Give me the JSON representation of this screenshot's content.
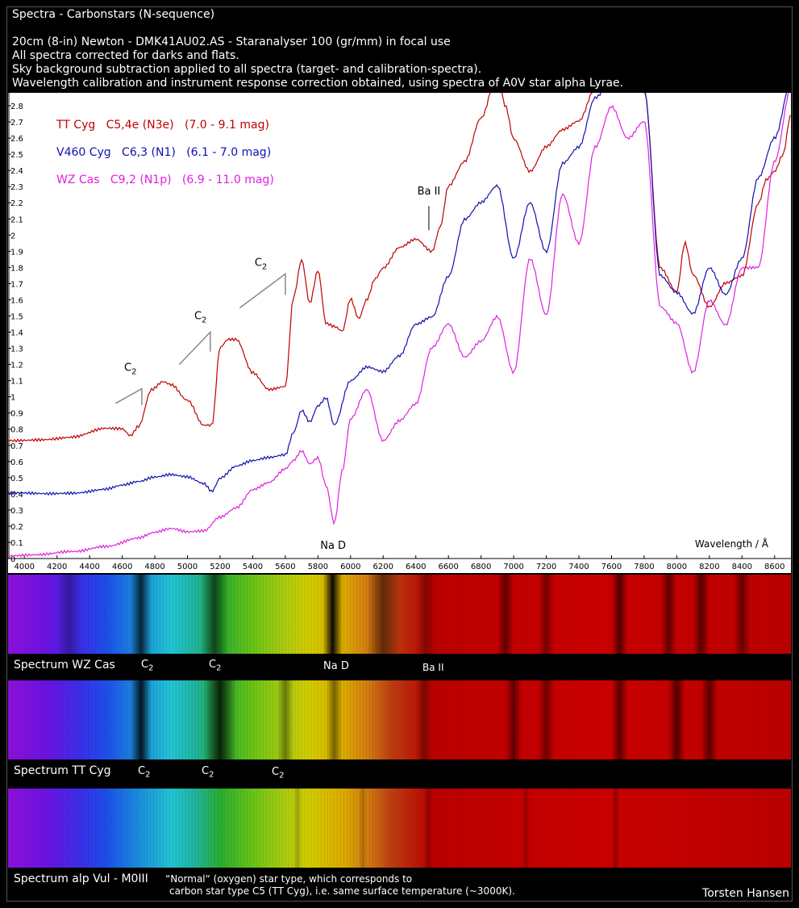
{
  "header": {
    "title": "Spectra - Carbonstars (N-sequence)",
    "lines": [
      "20cm (8-in) Newton   -  DMK41AU02.AS  -  Staranalyser 100 (gr/mm) in focal use",
      "All spectra corrected for darks and flats.",
      "Sky background subtraction applied to all spectra (target- and calibration-spectra).",
      "Wavelength calibration and instrument response correction obtained, using spectra of A0V star alpha Lyrae."
    ]
  },
  "chart_data": {
    "type": "line",
    "xlabel": "Wavelength / Å",
    "xlim": [
      3900,
      8700
    ],
    "ylim": [
      0,
      2.88
    ],
    "xticks": [
      4000,
      4200,
      4400,
      4600,
      4800,
      5000,
      5200,
      5400,
      5600,
      5800,
      6000,
      6200,
      6400,
      6600,
      6800,
      7000,
      7200,
      7400,
      7600,
      7800,
      8000,
      8200,
      8400,
      8600
    ],
    "yticks": [
      0,
      0.1,
      0.2,
      0.3,
      0.4,
      0.5,
      0.6,
      0.7,
      0.8,
      0.9,
      1,
      1.1,
      1.2,
      1.3,
      1.4,
      1.5,
      1.6,
      1.7,
      1.8,
      1.9,
      2,
      2.1,
      2.2,
      2.3,
      2.4,
      2.5,
      2.6,
      2.7,
      2.8
    ],
    "legend_placement": "top-left",
    "series": [
      {
        "name": "TT Cyg   C5,4e (N3e)   (7.0 - 9.1 mag)",
        "color": "#c00000",
        "x": [
          3900,
          4100,
          4300,
          4500,
          4600,
          4650,
          4700,
          4780,
          4850,
          4900,
          5000,
          5100,
          5150,
          5200,
          5250,
          5300,
          5400,
          5500,
          5600,
          5650,
          5700,
          5750,
          5800,
          5850,
          5900,
          5950,
          6000,
          6050,
          6100,
          6150,
          6200,
          6300,
          6400,
          6500,
          6550,
          6600,
          6700,
          6800,
          6900,
          6950,
          7000,
          7100,
          7200,
          7300,
          7400,
          7500,
          7600,
          7700,
          7800,
          7900,
          8000,
          8050,
          8100,
          8200,
          8300,
          8400,
          8500,
          8550,
          8600,
          8650,
          8700
        ],
        "y": [
          0.73,
          0.74,
          0.75,
          0.8,
          0.8,
          0.76,
          0.82,
          1.05,
          1.1,
          1.08,
          0.98,
          0.82,
          0.82,
          1.3,
          1.35,
          1.35,
          1.15,
          1.05,
          1.07,
          1.62,
          1.85,
          1.58,
          1.78,
          1.45,
          1.43,
          1.4,
          1.6,
          1.48,
          1.6,
          1.73,
          1.8,
          1.93,
          1.98,
          1.9,
          2.05,
          2.3,
          2.45,
          2.72,
          3.0,
          2.8,
          2.6,
          2.4,
          2.55,
          2.65,
          2.7,
          2.9,
          2.95,
          3.0,
          2.9,
          1.8,
          1.65,
          1.95,
          1.75,
          1.55,
          1.7,
          1.75,
          2.2,
          2.35,
          2.4,
          2.5,
          2.75
        ]
      },
      {
        "name": "V460 Cyg   C6,3 (N1)   (6.1 - 7.0 mag)",
        "color": "#1010b0",
        "x": [
          3900,
          4100,
          4300,
          4500,
          4600,
          4700,
          4800,
          4900,
          5000,
          5100,
          5150,
          5200,
          5300,
          5400,
          5500,
          5600,
          5650,
          5700,
          5750,
          5800,
          5850,
          5900,
          6000,
          6100,
          6200,
          6300,
          6400,
          6500,
          6600,
          6700,
          6800,
          6900,
          7000,
          7100,
          7200,
          7300,
          7400,
          7500,
          7600,
          7700,
          7800,
          7900,
          8000,
          8100,
          8200,
          8300,
          8400,
          8500,
          8600,
          8700
        ],
        "y": [
          0.4,
          0.4,
          0.41,
          0.43,
          0.45,
          0.47,
          0.5,
          0.52,
          0.51,
          0.47,
          0.42,
          0.5,
          0.57,
          0.6,
          0.62,
          0.64,
          0.78,
          0.92,
          0.85,
          0.95,
          1.0,
          0.83,
          1.1,
          1.18,
          1.15,
          1.25,
          1.45,
          1.5,
          1.75,
          2.1,
          2.2,
          2.3,
          1.85,
          2.2,
          1.9,
          2.45,
          2.55,
          2.85,
          2.95,
          3.0,
          2.9,
          1.75,
          1.65,
          1.52,
          1.8,
          1.63,
          1.85,
          2.35,
          2.6,
          2.95
        ]
      },
      {
        "name": "WZ Cas   C9,2 (N1p)   (6.9 - 11.0 mag)",
        "color": "#e020e0",
        "x": [
          3900,
          4100,
          4300,
          4500,
          4700,
          4800,
          4900,
          5000,
          5100,
          5200,
          5300,
          5400,
          5500,
          5600,
          5650,
          5700,
          5750,
          5800,
          5850,
          5900,
          5950,
          6000,
          6100,
          6200,
          6300,
          6400,
          6500,
          6600,
          6700,
          6800,
          6900,
          7000,
          7100,
          7200,
          7300,
          7400,
          7500,
          7600,
          7700,
          7800,
          7900,
          8000,
          8100,
          8200,
          8300,
          8400,
          8500,
          8600,
          8700
        ],
        "y": [
          0.02,
          0.02,
          0.04,
          0.08,
          0.13,
          0.16,
          0.18,
          0.16,
          0.17,
          0.26,
          0.32,
          0.43,
          0.47,
          0.55,
          0.6,
          0.66,
          0.58,
          0.62,
          0.45,
          0.22,
          0.55,
          0.87,
          1.05,
          0.73,
          0.85,
          0.95,
          1.3,
          1.45,
          1.25,
          1.35,
          1.5,
          1.15,
          1.85,
          1.5,
          2.25,
          1.95,
          2.55,
          2.8,
          2.6,
          2.7,
          1.55,
          1.45,
          1.15,
          1.6,
          1.45,
          1.8,
          1.8,
          2.45,
          2.9
        ]
      }
    ],
    "annotations": [
      {
        "text": "Ba II",
        "x": 6480,
        "y": 2.25,
        "line_from": [
          6480,
          2.03
        ],
        "line_to": [
          6480,
          2.18
        ]
      },
      {
        "text": "Na D",
        "x": 5893,
        "y": 0.06
      },
      {
        "text": "C",
        "sub": "2",
        "x": 4650,
        "y": 1.16,
        "path": [
          [
            4560,
            0.96
          ],
          [
            4720,
            1.05
          ],
          [
            4720,
            0.95
          ]
        ]
      },
      {
        "text": "C",
        "sub": "2",
        "x": 5080,
        "y": 1.48,
        "path": [
          [
            4950,
            1.2
          ],
          [
            5140,
            1.4
          ],
          [
            5140,
            1.28
          ]
        ]
      },
      {
        "text": "C",
        "sub": "2",
        "x": 5450,
        "y": 1.81,
        "path": [
          [
            5320,
            1.55
          ],
          [
            5600,
            1.76
          ],
          [
            5600,
            1.63
          ]
        ]
      }
    ]
  },
  "strips": [
    {
      "label": "Spectrum WZ Cas",
      "marks": [
        {
          "text": "C",
          "sub": "2"
        },
        {
          "text": "C",
          "sub": "2"
        },
        {
          "text": "Na D"
        },
        {
          "text": "Ba II"
        }
      ]
    },
    {
      "label": "Spectrum TT Cyg",
      "marks": [
        {
          "text": "C",
          "sub": "2"
        },
        {
          "text": "C",
          "sub": "2"
        },
        {
          "text": "C",
          "sub": "2"
        }
      ]
    },
    {
      "label": "Spectrum alp Vul - M0III",
      "marks": []
    }
  ],
  "note": {
    "line1": "“Normal“ (oxygen) star type, which corresponds to",
    "line2": "carbon star type C5 (TT Cyg), i.e. same surface temperature (~3000K)."
  },
  "author": "Torsten Hansen"
}
